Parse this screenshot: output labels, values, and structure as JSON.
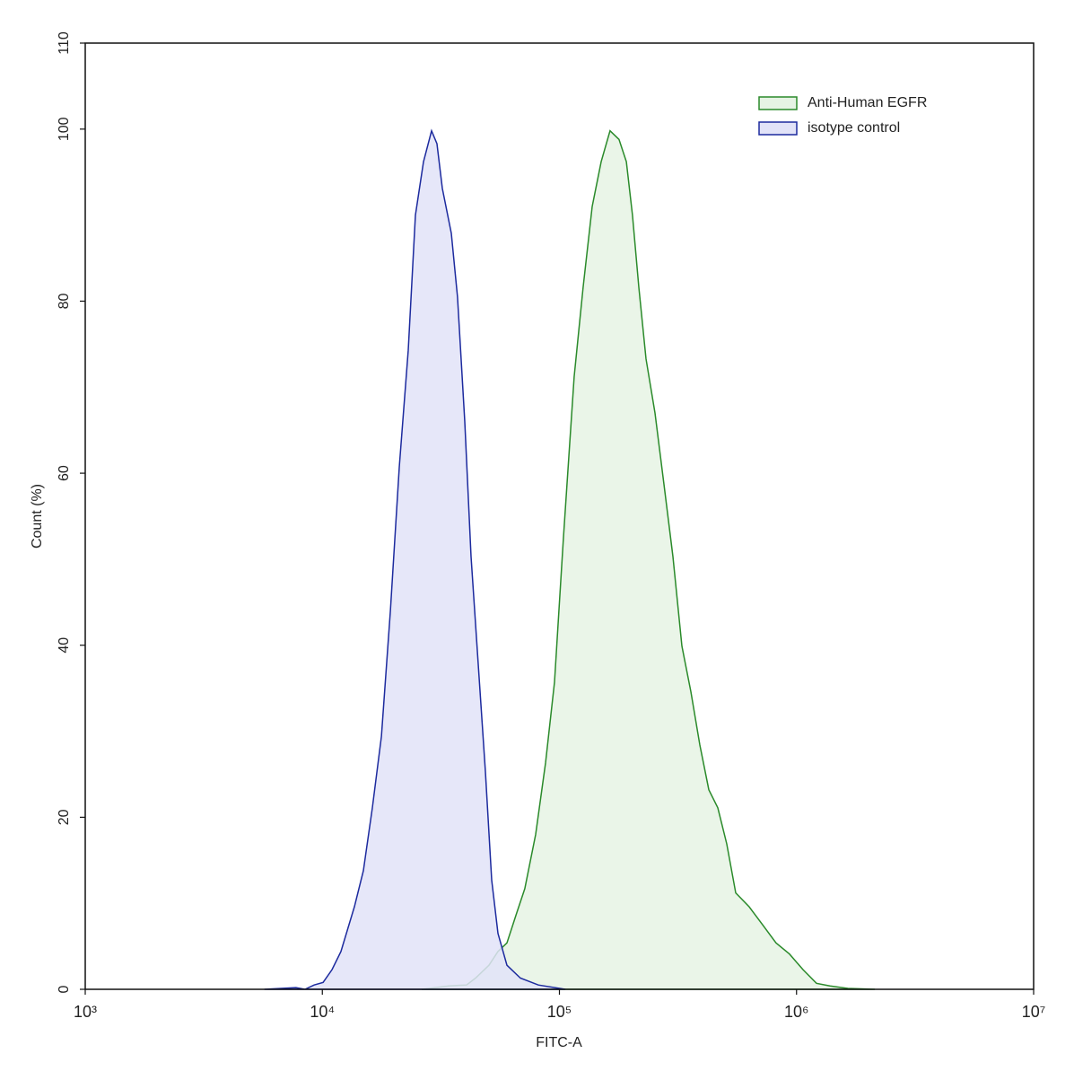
{
  "chart_data": {
    "type": "area",
    "x_label": "FITC-A",
    "y_label": "Count  (%)",
    "x_scale": "log",
    "xlim": [
      1000,
      10000000
    ],
    "xticks": [
      {
        "value": 1000,
        "label": "10³"
      },
      {
        "value": 10000,
        "label": "10⁴"
      },
      {
        "value": 100000,
        "label": "10⁵"
      },
      {
        "value": 1000000,
        "label": "10⁶"
      },
      {
        "value": 10000000,
        "label": "10⁷"
      }
    ],
    "ylim": [
      0,
      110
    ],
    "yticks": [
      0,
      20,
      40,
      60,
      80,
      100,
      110
    ],
    "legend": "upper right",
    "series": [
      {
        "name": "Anti-Human EGFR",
        "color": "#2a8a2a",
        "fill": "#e6f3e4",
        "x": [
          26240,
          34120,
          40590,
          44260,
          50450,
          55060,
          60080,
          65520,
          71450,
          79370,
          87330,
          95290,
          103900,
          115400,
          125900,
          137400,
          149900,
          163500,
          178400,
          191500,
          203300,
          216300,
          231800,
          253000,
          276000,
          301100,
          328500,
          358300,
          391000,
          426600,
          465400,
          507800,
          554000,
          631100,
          719100,
          819300,
          933800,
          1064000,
          1214000,
          1383000,
          1647000,
          2140000
        ],
        "values": [
          0,
          0.4,
          0.5,
          1.3,
          2.8,
          4.4,
          5.4,
          8.6,
          11.7,
          18.0,
          26.3,
          35.7,
          52.4,
          71.2,
          81.6,
          91.0,
          96.2,
          99.8,
          98.8,
          96.2,
          90.0,
          81.6,
          73.3,
          67.0,
          58.7,
          50.3,
          39.9,
          34.6,
          28.4,
          23.2,
          21.1,
          16.9,
          11.2,
          9.6,
          7.5,
          5.4,
          4.1,
          2.3,
          0.7,
          0.4,
          0.1,
          0
        ]
      },
      {
        "name": "isotype control",
        "color": "#1c2a9e",
        "fill": "#e2e3f8",
        "x": [
          5700,
          7740,
          8450,
          9230,
          10070,
          10990,
          11980,
          13650,
          14900,
          16260,
          17750,
          19370,
          21110,
          23030,
          24700,
          26710,
          28890,
          30430,
          32060,
          34990,
          37170,
          39890,
          42380,
          45460,
          48730,
          51780,
          55060,
          60080,
          68440,
          81470,
          105900
        ],
        "values": [
          0,
          0.2,
          0,
          0.5,
          0.8,
          2.3,
          4.4,
          9.6,
          13.8,
          21.1,
          29.4,
          44.0,
          60.7,
          74.3,
          90.0,
          96.2,
          99.8,
          98.3,
          93.1,
          87.9,
          80.5,
          66.0,
          50.3,
          37.8,
          25.3,
          12.7,
          6.5,
          2.8,
          1.3,
          0.5,
          0
        ]
      }
    ]
  }
}
